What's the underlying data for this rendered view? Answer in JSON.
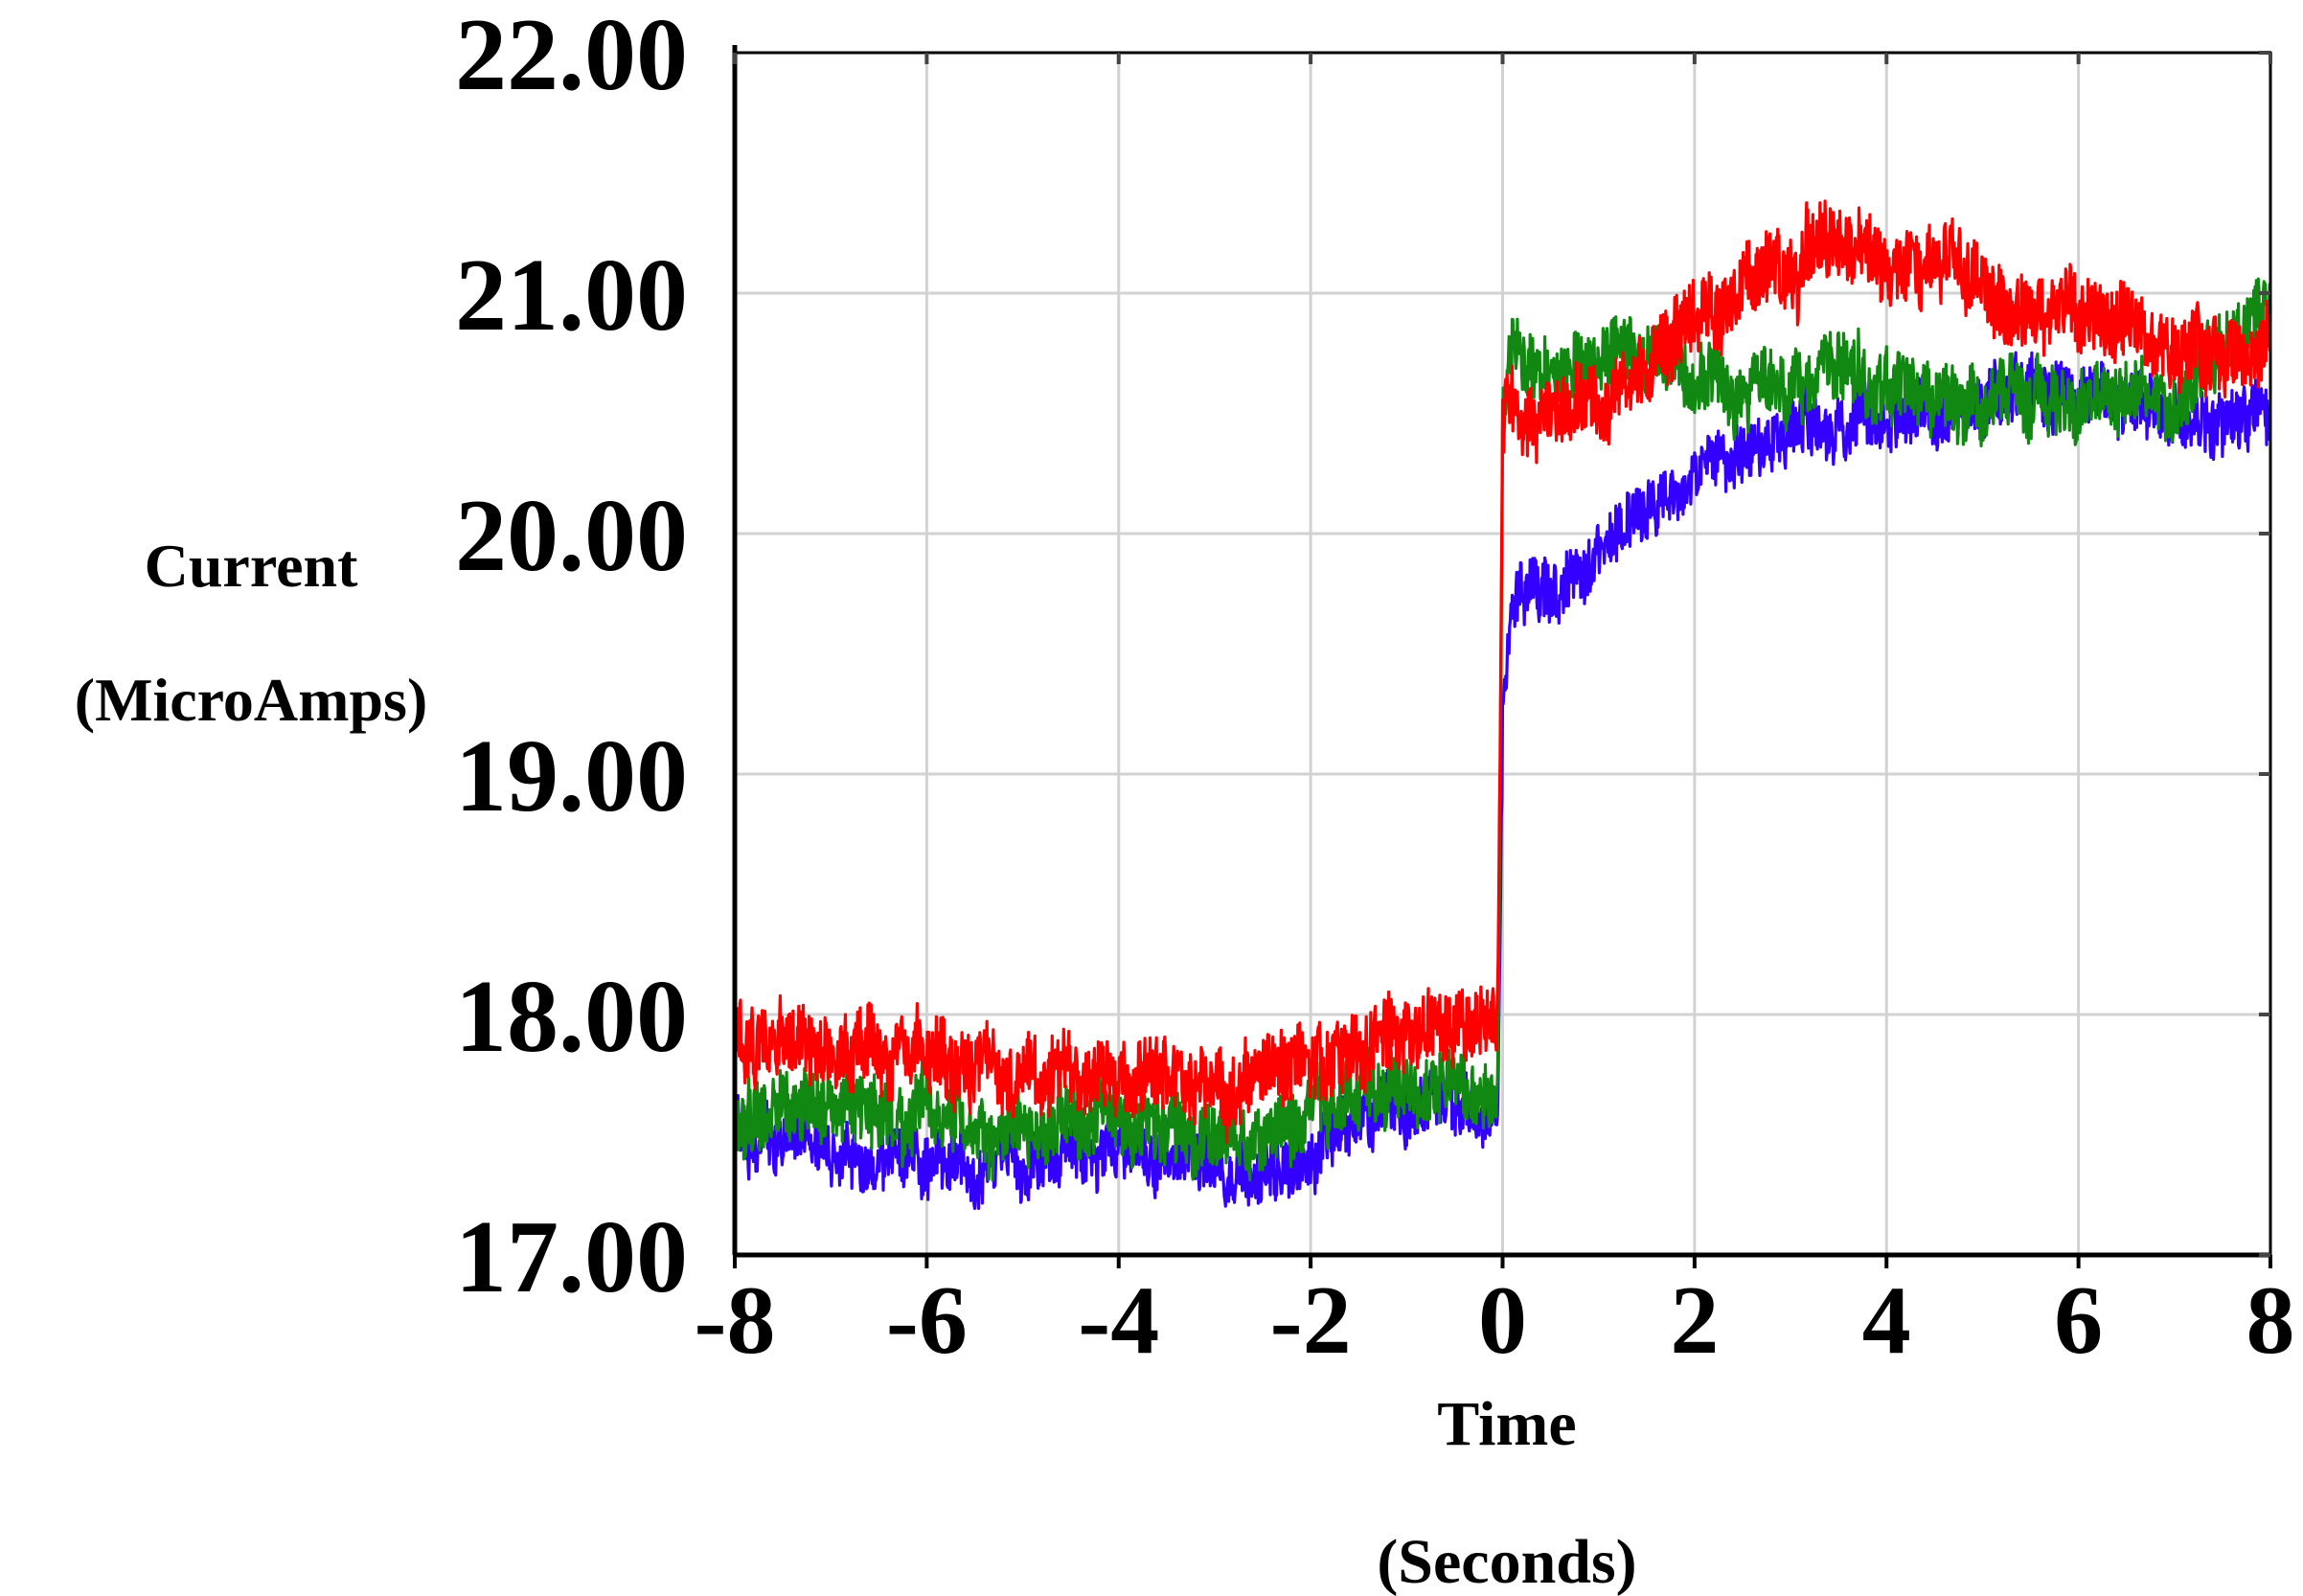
{
  "chart_data": {
    "type": "line",
    "title": "",
    "xlabel": "Time",
    "xlabel_unit": "(Seconds)",
    "ylabel": "Current",
    "ylabel_unit": "(MicroAmps)",
    "xlim": [
      -8,
      8
    ],
    "ylim": [
      17,
      22
    ],
    "x_ticks": [
      -8,
      -6,
      -4,
      -2,
      0,
      2,
      4,
      6,
      8
    ],
    "x_tick_labels": [
      "-8",
      "-6",
      "-4",
      "-2",
      "0",
      "2",
      "4",
      "6",
      "8"
    ],
    "y_ticks": [
      17,
      18,
      19,
      20,
      21,
      22
    ],
    "y_tick_labels": [
      "17.00",
      "18.00",
      "19.00",
      "20.00",
      "21.00",
      "22.00"
    ],
    "grid": true,
    "legend": "none",
    "noise_amplitude": [
      0.12,
      0.14,
      0.15
    ],
    "series": [
      {
        "color": "#3300ff",
        "x": [
          -8,
          -7,
          -6,
          -5,
          -4,
          -3,
          -2.2,
          -1.8,
          -1.5,
          -1,
          -0.5,
          -0.05,
          0,
          0.1,
          0.3,
          0.6,
          1,
          1.5,
          2,
          2.5,
          3,
          3.5,
          4,
          4.5,
          5,
          5.5,
          6,
          6.5,
          7,
          7.5,
          8
        ],
        "y": [
          17.52,
          17.45,
          17.38,
          17.38,
          17.42,
          17.38,
          17.36,
          17.48,
          17.58,
          17.62,
          17.65,
          17.62,
          19.2,
          19.7,
          19.8,
          19.72,
          19.95,
          20.12,
          20.25,
          20.35,
          20.4,
          20.48,
          20.45,
          20.5,
          20.55,
          20.6,
          20.58,
          20.55,
          20.5,
          20.48,
          20.45
        ]
      },
      {
        "color": "#118811",
        "x": [
          -8,
          -7,
          -6,
          -5,
          -4,
          -3,
          -2.2,
          -1.8,
          -1.5,
          -1,
          -0.5,
          -0.05,
          0,
          0.1,
          0.3,
          0.6,
          1,
          1.5,
          2,
          2.5,
          3,
          3.5,
          4,
          4.5,
          5,
          5.5,
          6,
          6.5,
          7,
          7.5,
          8
        ],
        "y": [
          17.55,
          17.6,
          17.55,
          17.52,
          17.58,
          17.52,
          17.55,
          17.62,
          17.7,
          17.72,
          17.72,
          17.68,
          20.5,
          20.75,
          20.72,
          20.68,
          20.7,
          20.72,
          20.68,
          20.62,
          20.65,
          20.72,
          20.6,
          20.55,
          20.55,
          20.58,
          20.6,
          20.58,
          20.6,
          20.75,
          20.95
        ]
      },
      {
        "color": "#ff0000",
        "x": [
          -8,
          -7,
          -6,
          -5,
          -4,
          -3,
          -2.2,
          -1.8,
          -1.5,
          -1,
          -0.5,
          -0.05,
          0,
          0.1,
          0.3,
          0.6,
          1,
          1.5,
          2,
          2.5,
          3,
          3.5,
          4,
          4.5,
          5,
          5.5,
          6,
          6.5,
          7,
          7.5,
          8
        ],
        "y": [
          17.88,
          17.88,
          17.82,
          17.78,
          17.75,
          17.72,
          17.78,
          17.82,
          17.88,
          17.92,
          17.95,
          17.95,
          20.45,
          20.5,
          20.45,
          20.48,
          20.52,
          20.7,
          20.88,
          21.0,
          21.15,
          21.2,
          21.12,
          21.15,
          21.05,
          20.92,
          20.9,
          20.88,
          20.75,
          20.75,
          20.82
        ]
      }
    ]
  }
}
